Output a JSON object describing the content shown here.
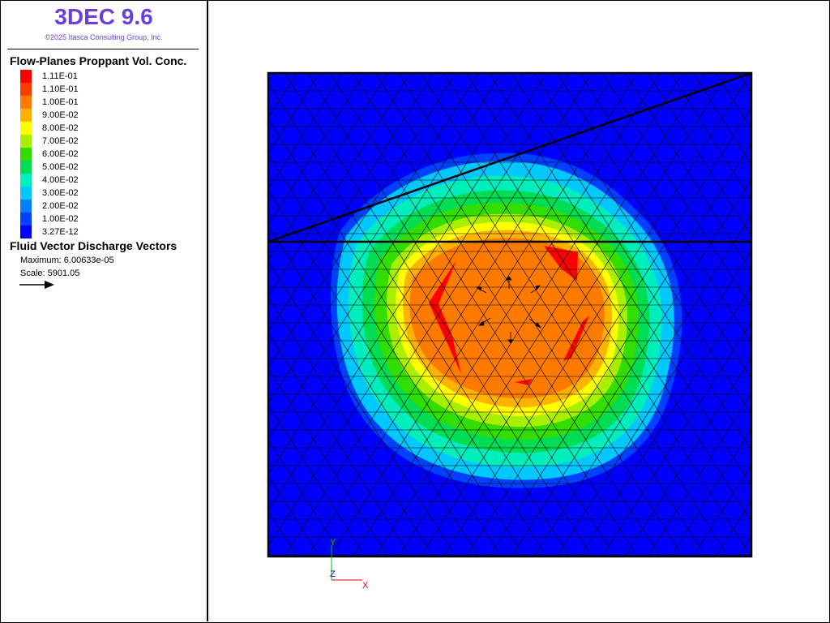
{
  "app": {
    "title": "3DEC 9.6",
    "copyright": "©2025 Itasca Consulting Group, Inc."
  },
  "legend": {
    "concentration": {
      "title": "Flow-Planes Proppant Vol. Conc.",
      "levels": [
        {
          "label": "1.11E-01",
          "color": "#ff0000"
        },
        {
          "label": "1.10E-01",
          "color": "#ff3b00"
        },
        {
          "label": "1.00E-01",
          "color": "#ff7b00"
        },
        {
          "label": "9.00E-02",
          "color": "#ffb200"
        },
        {
          "label": "8.00E-02",
          "color": "#ffff00"
        },
        {
          "label": "7.00E-02",
          "color": "#aaee00"
        },
        {
          "label": "6.00E-02",
          "color": "#33dd00"
        },
        {
          "label": "5.00E-02",
          "color": "#00dd55"
        },
        {
          "label": "4.00E-02",
          "color": "#00eebb"
        },
        {
          "label": "3.00E-02",
          "color": "#00c8ff"
        },
        {
          "label": "2.00E-02",
          "color": "#0080ff"
        },
        {
          "label": "1.00E-02",
          "color": "#0040ff"
        },
        {
          "label": "3.27E-12",
          "color": "#0000ff"
        }
      ]
    },
    "vectors": {
      "title": "Fluid Vector Discharge Vectors",
      "maximum": "Maximum: 6.00633e-05",
      "scale": "Scale: 5901.05"
    }
  },
  "axes": {
    "y_label": "Y",
    "z_label": "Z",
    "x_label": "X",
    "y_color": "#00c000",
    "z_color": "#0000ff",
    "x_color": "#e00000"
  }
}
